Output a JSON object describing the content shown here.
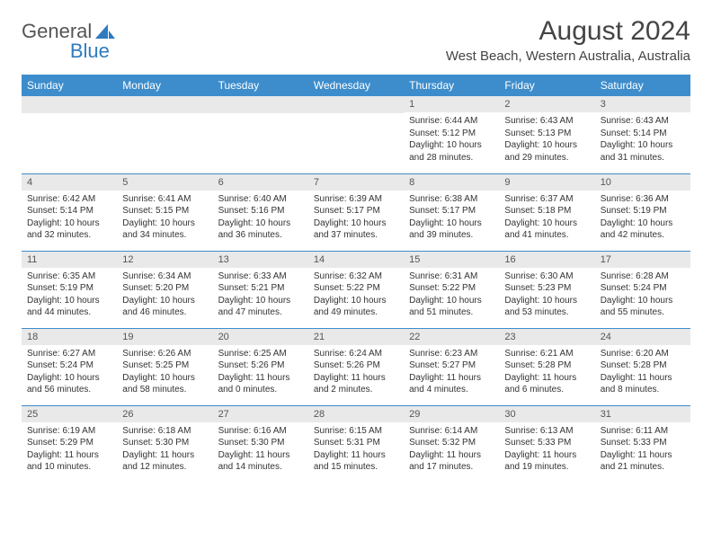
{
  "logo": {
    "text_general": "General",
    "text_blue": "Blue"
  },
  "title": {
    "month": "August 2024",
    "location": "West Beach, Western Australia, Australia"
  },
  "colors": {
    "header_bg": "#3d8dcc",
    "header_text": "#ffffff",
    "daynum_bg": "#e9e9e9",
    "row_border": "#3d8dcc",
    "body_text": "#333333",
    "logo_gray": "#555555",
    "logo_blue": "#2f7bbf"
  },
  "typography": {
    "month_fontsize": 30,
    "location_fontsize": 15,
    "day_header_fontsize": 12,
    "daynum_fontsize": 11,
    "dayinfo_fontsize": 10
  },
  "day_headers": [
    "Sunday",
    "Monday",
    "Tuesday",
    "Wednesday",
    "Thursday",
    "Friday",
    "Saturday"
  ],
  "weeks": [
    [
      null,
      null,
      null,
      null,
      {
        "n": "1",
        "sr": "6:44 AM",
        "ss": "5:12 PM",
        "dl": "10 hours and 28 minutes."
      },
      {
        "n": "2",
        "sr": "6:43 AM",
        "ss": "5:13 PM",
        "dl": "10 hours and 29 minutes."
      },
      {
        "n": "3",
        "sr": "6:43 AM",
        "ss": "5:14 PM",
        "dl": "10 hours and 31 minutes."
      }
    ],
    [
      {
        "n": "4",
        "sr": "6:42 AM",
        "ss": "5:14 PM",
        "dl": "10 hours and 32 minutes."
      },
      {
        "n": "5",
        "sr": "6:41 AM",
        "ss": "5:15 PM",
        "dl": "10 hours and 34 minutes."
      },
      {
        "n": "6",
        "sr": "6:40 AM",
        "ss": "5:16 PM",
        "dl": "10 hours and 36 minutes."
      },
      {
        "n": "7",
        "sr": "6:39 AM",
        "ss": "5:17 PM",
        "dl": "10 hours and 37 minutes."
      },
      {
        "n": "8",
        "sr": "6:38 AM",
        "ss": "5:17 PM",
        "dl": "10 hours and 39 minutes."
      },
      {
        "n": "9",
        "sr": "6:37 AM",
        "ss": "5:18 PM",
        "dl": "10 hours and 41 minutes."
      },
      {
        "n": "10",
        "sr": "6:36 AM",
        "ss": "5:19 PM",
        "dl": "10 hours and 42 minutes."
      }
    ],
    [
      {
        "n": "11",
        "sr": "6:35 AM",
        "ss": "5:19 PM",
        "dl": "10 hours and 44 minutes."
      },
      {
        "n": "12",
        "sr": "6:34 AM",
        "ss": "5:20 PM",
        "dl": "10 hours and 46 minutes."
      },
      {
        "n": "13",
        "sr": "6:33 AM",
        "ss": "5:21 PM",
        "dl": "10 hours and 47 minutes."
      },
      {
        "n": "14",
        "sr": "6:32 AM",
        "ss": "5:22 PM",
        "dl": "10 hours and 49 minutes."
      },
      {
        "n": "15",
        "sr": "6:31 AM",
        "ss": "5:22 PM",
        "dl": "10 hours and 51 minutes."
      },
      {
        "n": "16",
        "sr": "6:30 AM",
        "ss": "5:23 PM",
        "dl": "10 hours and 53 minutes."
      },
      {
        "n": "17",
        "sr": "6:28 AM",
        "ss": "5:24 PM",
        "dl": "10 hours and 55 minutes."
      }
    ],
    [
      {
        "n": "18",
        "sr": "6:27 AM",
        "ss": "5:24 PM",
        "dl": "10 hours and 56 minutes."
      },
      {
        "n": "19",
        "sr": "6:26 AM",
        "ss": "5:25 PM",
        "dl": "10 hours and 58 minutes."
      },
      {
        "n": "20",
        "sr": "6:25 AM",
        "ss": "5:26 PM",
        "dl": "11 hours and 0 minutes."
      },
      {
        "n": "21",
        "sr": "6:24 AM",
        "ss": "5:26 PM",
        "dl": "11 hours and 2 minutes."
      },
      {
        "n": "22",
        "sr": "6:23 AM",
        "ss": "5:27 PM",
        "dl": "11 hours and 4 minutes."
      },
      {
        "n": "23",
        "sr": "6:21 AM",
        "ss": "5:28 PM",
        "dl": "11 hours and 6 minutes."
      },
      {
        "n": "24",
        "sr": "6:20 AM",
        "ss": "5:28 PM",
        "dl": "11 hours and 8 minutes."
      }
    ],
    [
      {
        "n": "25",
        "sr": "6:19 AM",
        "ss": "5:29 PM",
        "dl": "11 hours and 10 minutes."
      },
      {
        "n": "26",
        "sr": "6:18 AM",
        "ss": "5:30 PM",
        "dl": "11 hours and 12 minutes."
      },
      {
        "n": "27",
        "sr": "6:16 AM",
        "ss": "5:30 PM",
        "dl": "11 hours and 14 minutes."
      },
      {
        "n": "28",
        "sr": "6:15 AM",
        "ss": "5:31 PM",
        "dl": "11 hours and 15 minutes."
      },
      {
        "n": "29",
        "sr": "6:14 AM",
        "ss": "5:32 PM",
        "dl": "11 hours and 17 minutes."
      },
      {
        "n": "30",
        "sr": "6:13 AM",
        "ss": "5:33 PM",
        "dl": "11 hours and 19 minutes."
      },
      {
        "n": "31",
        "sr": "6:11 AM",
        "ss": "5:33 PM",
        "dl": "11 hours and 21 minutes."
      }
    ]
  ],
  "labels": {
    "sunrise": "Sunrise:",
    "sunset": "Sunset:",
    "daylight": "Daylight:"
  }
}
